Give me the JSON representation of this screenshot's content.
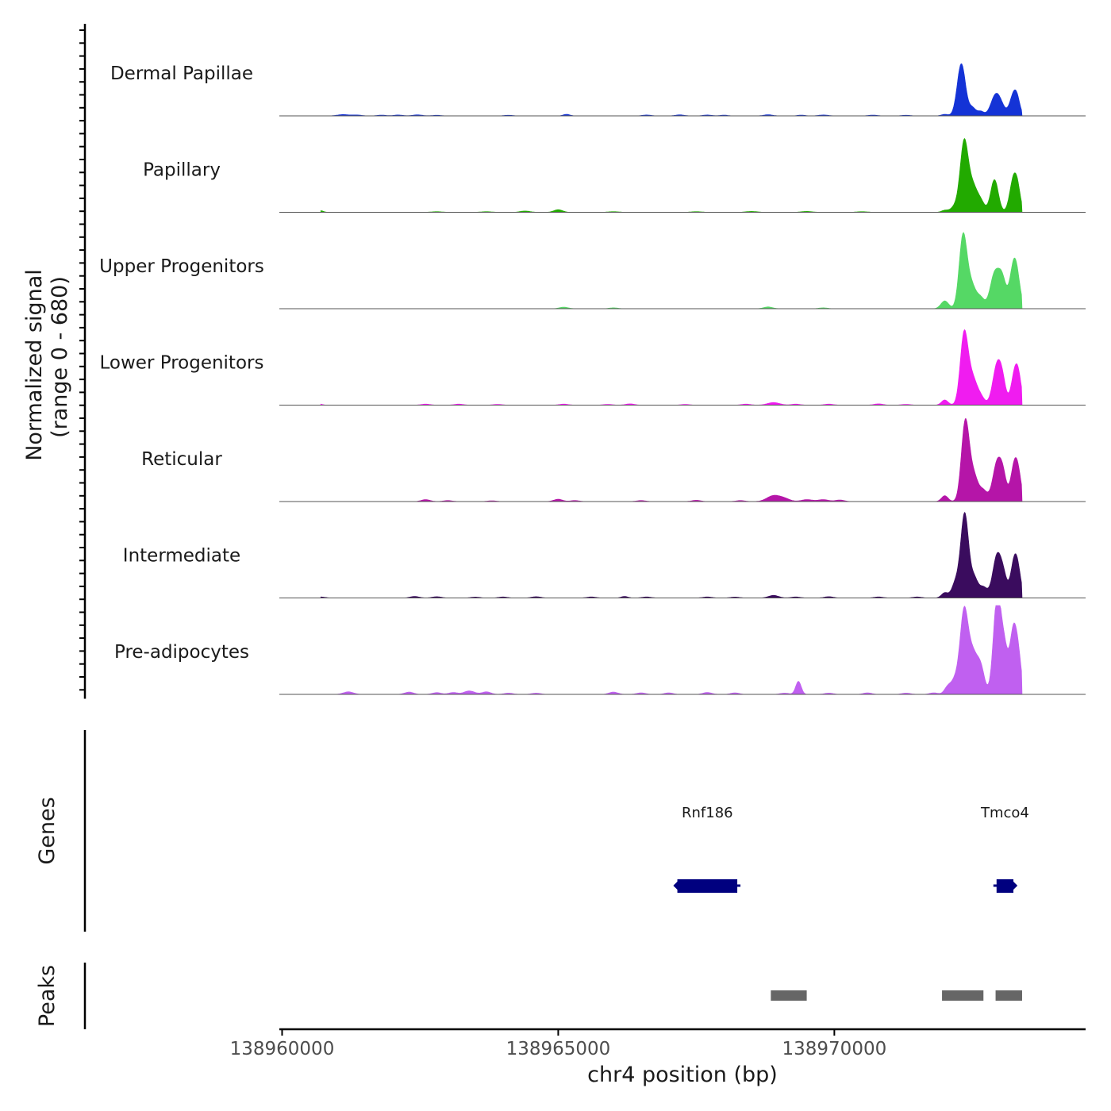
{
  "chart_data": {
    "type": "area",
    "title": "",
    "ylabel_line1": "Normalized signal",
    "ylabel_line2": "(range 0 - 680)",
    "y_range": [
      0,
      680
    ],
    "xlabel": "chr4 position (bp)",
    "x_range": [
      138959950,
      138974550
    ],
    "x_ticks": [
      {
        "value": 138960000,
        "label": "138960000"
      },
      {
        "value": 138965000,
        "label": "138965000"
      },
      {
        "value": 138970000,
        "label": "138970000"
      }
    ],
    "signal_x_range": [
      138960700,
      138973400
    ],
    "tracks": [
      {
        "name": "Dermal Papillae",
        "color": "#1433d6",
        "bumps": [
          [
            138961100,
            10,
            100
          ],
          [
            138961350,
            7,
            90
          ],
          [
            138961800,
            6,
            80
          ],
          [
            138962100,
            7,
            80
          ],
          [
            138962450,
            8,
            90
          ],
          [
            138962800,
            5,
            80
          ],
          [
            138964100,
            5,
            80
          ],
          [
            138965150,
            12,
            60
          ],
          [
            138966600,
            7,
            80
          ],
          [
            138967200,
            8,
            80
          ],
          [
            138967700,
            7,
            80
          ],
          [
            138968000,
            6,
            70
          ],
          [
            138968800,
            9,
            80
          ],
          [
            138969400,
            6,
            70
          ],
          [
            138969800,
            7,
            90
          ],
          [
            138970700,
            6,
            80
          ],
          [
            138971300,
            5,
            80
          ],
          [
            138972000,
            12,
            60
          ],
          [
            138972300,
            400,
            75
          ],
          [
            138972500,
            60,
            60
          ],
          [
            138972650,
            35,
            60
          ],
          [
            138972900,
            120,
            80
          ],
          [
            138973000,
            90,
            80
          ],
          [
            138973250,
            170,
            70
          ],
          [
            138973320,
            60,
            50
          ]
        ]
      },
      {
        "name": "Papillary",
        "color": "#22aa00",
        "bumps": [
          [
            138960700,
            12,
            50
          ],
          [
            138962800,
            5,
            100
          ],
          [
            138963700,
            5,
            100
          ],
          [
            138964400,
            10,
            90
          ],
          [
            138965000,
            20,
            80
          ],
          [
            138966000,
            5,
            100
          ],
          [
            138967500,
            5,
            100
          ],
          [
            138968500,
            7,
            100
          ],
          [
            138969500,
            7,
            100
          ],
          [
            138970500,
            5,
            100
          ],
          [
            138972000,
            15,
            60
          ],
          [
            138972200,
            50,
            80
          ],
          [
            138972350,
            520,
            70
          ],
          [
            138972500,
            200,
            80
          ],
          [
            138972650,
            80,
            70
          ],
          [
            138972900,
            250,
            70
          ],
          [
            138973250,
            270,
            70
          ],
          [
            138973330,
            90,
            50
          ]
        ]
      },
      {
        "name": "Upper Progenitors",
        "color": "#55d865",
        "bumps": [
          [
            138965100,
            12,
            80
          ],
          [
            138966000,
            7,
            80
          ],
          [
            138968800,
            14,
            80
          ],
          [
            138969800,
            7,
            80
          ],
          [
            138972000,
            60,
            70
          ],
          [
            138972330,
            550,
            70
          ],
          [
            138972480,
            180,
            80
          ],
          [
            138972650,
            80,
            70
          ],
          [
            138972900,
            260,
            80
          ],
          [
            138973040,
            220,
            70
          ],
          [
            138973250,
            340,
            70
          ],
          [
            138973330,
            100,
            60
          ]
        ]
      },
      {
        "name": "Lower Progenitors",
        "color": "#f01cf0",
        "bumps": [
          [
            138960650,
            12,
            60
          ],
          [
            138962600,
            8,
            80
          ],
          [
            138963200,
            8,
            80
          ],
          [
            138963900,
            6,
            80
          ],
          [
            138965100,
            8,
            80
          ],
          [
            138965900,
            6,
            80
          ],
          [
            138966300,
            10,
            80
          ],
          [
            138967300,
            6,
            80
          ],
          [
            138968400,
            8,
            80
          ],
          [
            138968900,
            20,
            110
          ],
          [
            138969300,
            8,
            80
          ],
          [
            138969900,
            8,
            80
          ],
          [
            138970800,
            10,
            80
          ],
          [
            138971300,
            6,
            80
          ],
          [
            138972000,
            40,
            60
          ],
          [
            138972350,
            540,
            70
          ],
          [
            138972500,
            200,
            80
          ],
          [
            138972650,
            60,
            70
          ],
          [
            138972950,
            310,
            80
          ],
          [
            138973050,
            120,
            60
          ],
          [
            138973280,
            280,
            70
          ],
          [
            138973350,
            80,
            50
          ]
        ]
      },
      {
        "name": "Reticular",
        "color": "#b515a8",
        "bumps": [
          [
            138962600,
            15,
            80
          ],
          [
            138963000,
            8,
            80
          ],
          [
            138963800,
            6,
            80
          ],
          [
            138965000,
            18,
            80
          ],
          [
            138965300,
            8,
            80
          ],
          [
            138966500,
            8,
            80
          ],
          [
            138967500,
            10,
            80
          ],
          [
            138968300,
            8,
            80
          ],
          [
            138968900,
            45,
            120
          ],
          [
            138969100,
            20,
            100
          ],
          [
            138969500,
            15,
            100
          ],
          [
            138969800,
            15,
            100
          ],
          [
            138970100,
            12,
            80
          ],
          [
            138972000,
            45,
            60
          ],
          [
            138972370,
            600,
            70
          ],
          [
            138972520,
            200,
            80
          ],
          [
            138972700,
            80,
            70
          ],
          [
            138972950,
            300,
            80
          ],
          [
            138973060,
            150,
            60
          ],
          [
            138973270,
            310,
            70
          ],
          [
            138973350,
            80,
            50
          ]
        ]
      },
      {
        "name": "Intermediate",
        "color": "#3a0c5e",
        "bumps": [
          [
            138960700,
            8,
            80
          ],
          [
            138962400,
            12,
            80
          ],
          [
            138962800,
            10,
            80
          ],
          [
            138963500,
            7,
            80
          ],
          [
            138964000,
            8,
            80
          ],
          [
            138964600,
            10,
            80
          ],
          [
            138965600,
            8,
            80
          ],
          [
            138966200,
            12,
            60
          ],
          [
            138966600,
            8,
            80
          ],
          [
            138967700,
            8,
            80
          ],
          [
            138968200,
            7,
            80
          ],
          [
            138968900,
            20,
            90
          ],
          [
            138969300,
            8,
            80
          ],
          [
            138969900,
            10,
            80
          ],
          [
            138970800,
            8,
            80
          ],
          [
            138971500,
            8,
            80
          ],
          [
            138972000,
            40,
            60
          ],
          [
            138972200,
            120,
            70
          ],
          [
            138972360,
            640,
            70
          ],
          [
            138972530,
            150,
            70
          ],
          [
            138972700,
            80,
            70
          ],
          [
            138972950,
            330,
            80
          ],
          [
            138973070,
            120,
            60
          ],
          [
            138973270,
            320,
            70
          ],
          [
            138973350,
            60,
            50
          ]
        ]
      },
      {
        "name": "Pre-adipocytes",
        "color": "#c060f0",
        "bumps": [
          [
            138961200,
            20,
            90
          ],
          [
            138962300,
            18,
            80
          ],
          [
            138962800,
            14,
            80
          ],
          [
            138963100,
            15,
            80
          ],
          [
            138963350,
            18,
            80
          ],
          [
            138963450,
            14,
            80
          ],
          [
            138963700,
            20,
            80
          ],
          [
            138964100,
            10,
            80
          ],
          [
            138964600,
            10,
            80
          ],
          [
            138966000,
            18,
            80
          ],
          [
            138966500,
            12,
            80
          ],
          [
            138967000,
            12,
            80
          ],
          [
            138967700,
            15,
            80
          ],
          [
            138968200,
            12,
            80
          ],
          [
            138969100,
            10,
            80
          ],
          [
            138969350,
            100,
            50
          ],
          [
            138969900,
            10,
            80
          ],
          [
            138970600,
            12,
            80
          ],
          [
            138971300,
            10,
            80
          ],
          [
            138971800,
            12,
            80
          ],
          [
            138972050,
            50,
            60
          ],
          [
            138972200,
            120,
            80
          ],
          [
            138972350,
            600,
            70
          ],
          [
            138972500,
            300,
            80
          ],
          [
            138972650,
            200,
            70
          ],
          [
            138972950,
            750,
            70
          ],
          [
            138973080,
            300,
            60
          ],
          [
            138973250,
            520,
            70
          ],
          [
            138973350,
            150,
            50
          ]
        ]
      }
    ],
    "genes_label": "Genes",
    "genes": [
      {
        "name": "Rnf186",
        "start": 138967100,
        "end": 138968300,
        "color": "#00007f",
        "strand": "-"
      },
      {
        "name": "Tmco4",
        "start": 138972880,
        "end": 138973300,
        "color": "#00007f",
        "strand": "+"
      }
    ],
    "peaks_label": "Peaks",
    "peaks": [
      {
        "start": 138968850,
        "end": 138969500
      },
      {
        "start": 138971950,
        "end": 138972700
      },
      {
        "start": 138972920,
        "end": 138973400
      }
    ]
  },
  "colors": {
    "axis": "#000000",
    "baseline": "#555555",
    "peak": "#666666"
  }
}
